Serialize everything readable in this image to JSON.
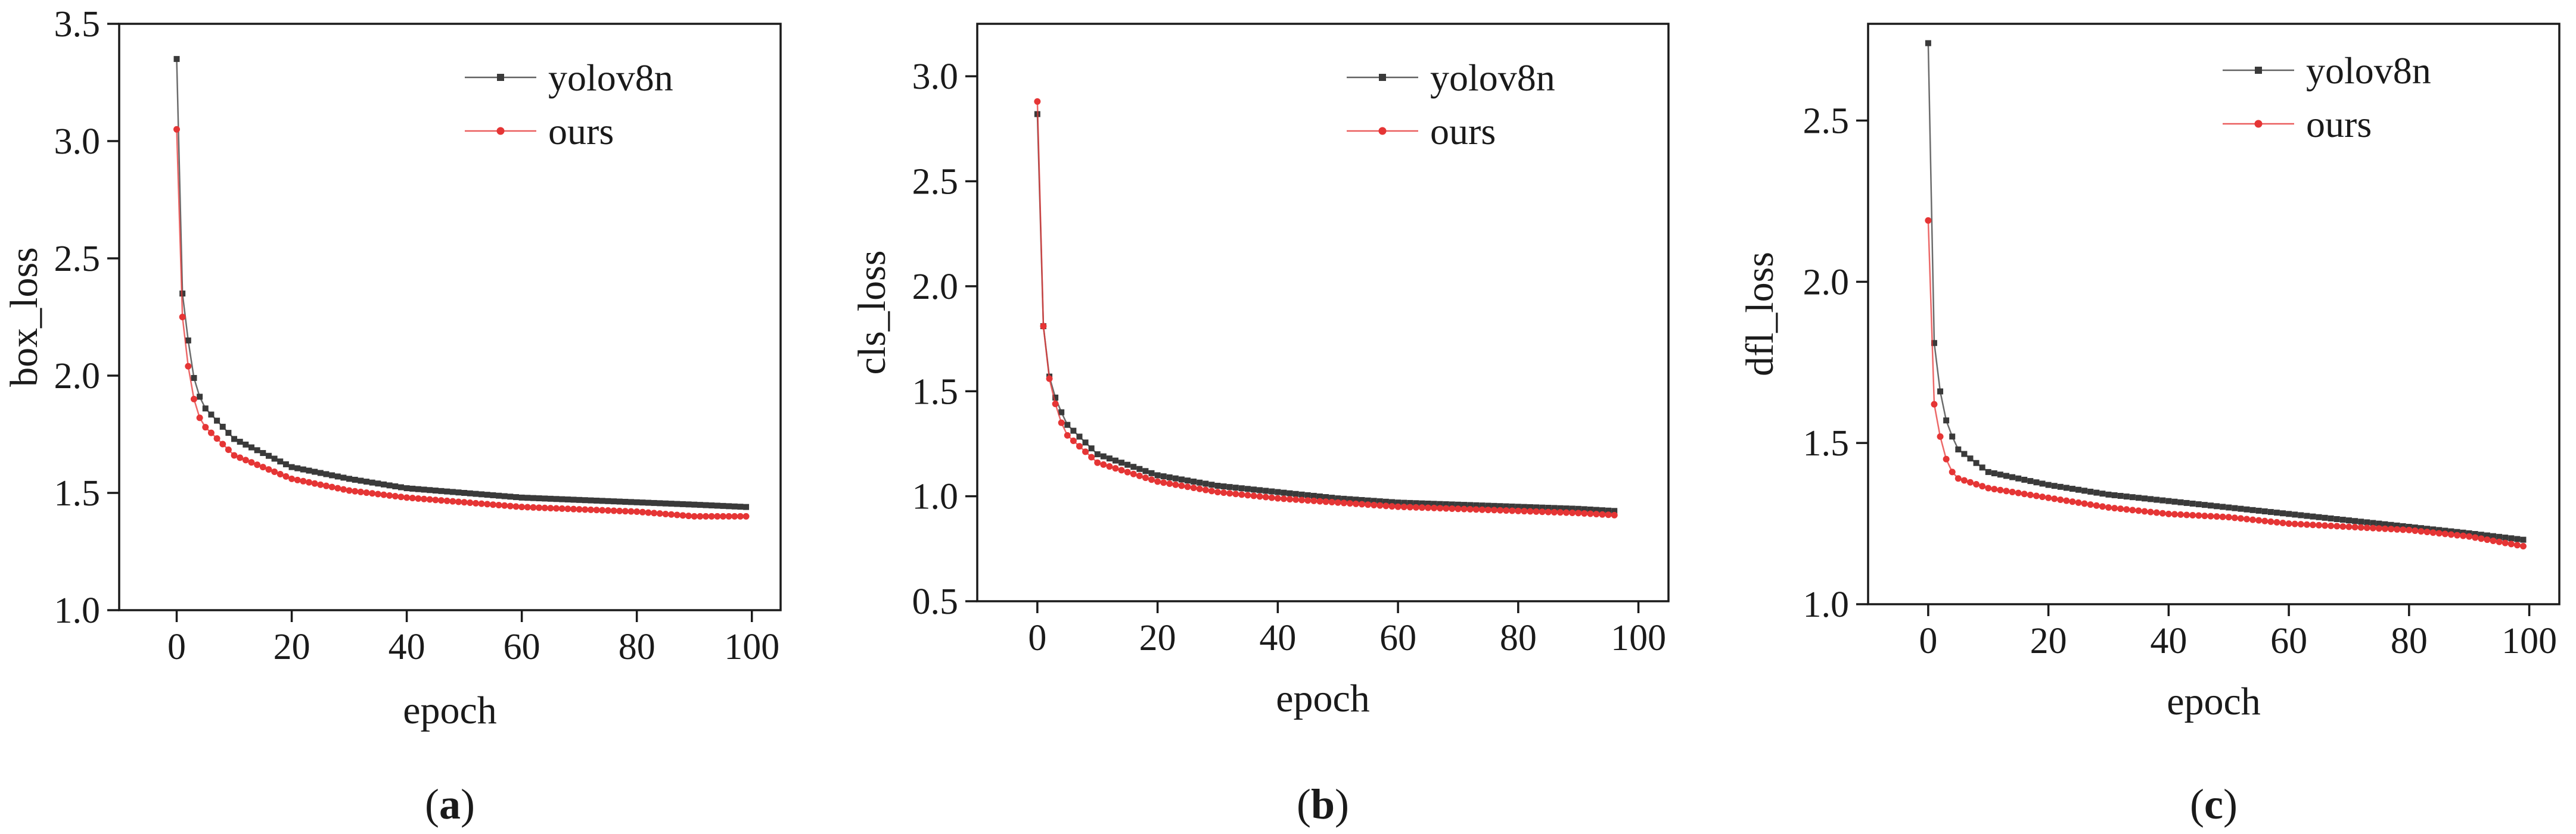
{
  "colors": {
    "yolov8n": "#3a3a3a",
    "ours": "#e53535",
    "axis": "#1a1a1a"
  },
  "chart_data": [
    {
      "type": "line",
      "panel_label": "(a)",
      "panel_letter": "a",
      "xlabel": "epoch",
      "ylabel": "box_loss",
      "xlim": [
        -10,
        105
      ],
      "ylim": [
        1.0,
        3.5
      ],
      "xticks": [
        "0",
        "20",
        "40",
        "60",
        "80",
        "100"
      ],
      "yticks": [
        "1.0",
        "1.5",
        "2.0",
        "2.5",
        "3.0",
        "3.5"
      ],
      "legend": {
        "position": "top-right",
        "entries": [
          "yolov8n",
          "ours"
        ]
      },
      "n_epochs": 100,
      "series": [
        {
          "name": "yolov8n",
          "start": [
            3.35,
            2.35,
            2.15,
            1.99,
            1.91
          ],
          "anchors": [
            [
              5,
              1.86
            ],
            [
              10,
              1.73
            ],
            [
              20,
              1.61
            ],
            [
              30,
              1.56
            ],
            [
              40,
              1.52
            ],
            [
              50,
              1.5
            ],
            [
              60,
              1.48
            ],
            [
              70,
              1.47
            ],
            [
              80,
              1.46
            ],
            [
              90,
              1.45
            ],
            [
              99,
              1.44
            ]
          ]
        },
        {
          "name": "ours",
          "start": [
            3.05,
            2.25,
            2.04,
            1.9,
            1.82
          ],
          "anchors": [
            [
              5,
              1.78
            ],
            [
              10,
              1.66
            ],
            [
              20,
              1.56
            ],
            [
              30,
              1.51
            ],
            [
              40,
              1.48
            ],
            [
              50,
              1.46
            ],
            [
              60,
              1.44
            ],
            [
              70,
              1.43
            ],
            [
              80,
              1.42
            ],
            [
              90,
              1.4
            ],
            [
              99,
              1.4
            ]
          ]
        }
      ]
    },
    {
      "type": "line",
      "panel_label": "(b)",
      "panel_letter": "b",
      "xlabel": "epoch",
      "ylabel": "cls_loss",
      "xlim": [
        -10,
        105
      ],
      "ylim": [
        0.5,
        3.25
      ],
      "xticks": [
        "0",
        "20",
        "40",
        "60",
        "80",
        "100"
      ],
      "yticks": [
        "0.5",
        "1.0",
        "1.5",
        "2.0",
        "2.5",
        "3.0"
      ],
      "legend": {
        "position": "top-right",
        "entries": [
          "yolov8n",
          "ours"
        ]
      },
      "n_epochs": 97,
      "series": [
        {
          "name": "yolov8n",
          "start": [
            2.82,
            1.81,
            1.57,
            1.47,
            1.4
          ],
          "anchors": [
            [
              5,
              1.34
            ],
            [
              10,
              1.2
            ],
            [
              20,
              1.1
            ],
            [
              30,
              1.05
            ],
            [
              40,
              1.02
            ],
            [
              50,
              0.99
            ],
            [
              60,
              0.97
            ],
            [
              70,
              0.96
            ],
            [
              80,
              0.95
            ],
            [
              90,
              0.94
            ],
            [
              96,
              0.93
            ]
          ]
        },
        {
          "name": "ours",
          "start": [
            2.88,
            1.81,
            1.56,
            1.44,
            1.35
          ],
          "anchors": [
            [
              5,
              1.29
            ],
            [
              10,
              1.16
            ],
            [
              20,
              1.07
            ],
            [
              30,
              1.02
            ],
            [
              40,
              0.99
            ],
            [
              50,
              0.97
            ],
            [
              60,
              0.95
            ],
            [
              70,
              0.94
            ],
            [
              80,
              0.93
            ],
            [
              90,
              0.92
            ],
            [
              96,
              0.91
            ]
          ]
        }
      ]
    },
    {
      "type": "line",
      "panel_label": "(c)",
      "panel_letter": "c",
      "xlabel": "epoch",
      "ylabel": "dfl_loss",
      "xlim": [
        -10,
        105
      ],
      "ylim": [
        1.0,
        2.8
      ],
      "xticks": [
        "0",
        "20",
        "40",
        "60",
        "80",
        "100"
      ],
      "yticks": [
        "1.0",
        "1.5",
        "2.0",
        "2.5"
      ],
      "legend": {
        "position": "top-right",
        "entries": [
          "yolov8n",
          "ours"
        ]
      },
      "n_epochs": 100,
      "series": [
        {
          "name": "yolov8n",
          "start": [
            2.74,
            1.81,
            1.66,
            1.57,
            1.52
          ],
          "anchors": [
            [
              5,
              1.48
            ],
            [
              10,
              1.41
            ],
            [
              20,
              1.37
            ],
            [
              30,
              1.34
            ],
            [
              40,
              1.32
            ],
            [
              50,
              1.3
            ],
            [
              60,
              1.28
            ],
            [
              70,
              1.26
            ],
            [
              80,
              1.24
            ],
            [
              90,
              1.22
            ],
            [
              99,
              1.2
            ]
          ]
        },
        {
          "name": "ours",
          "start": [
            2.19,
            1.62,
            1.52,
            1.45,
            1.41
          ],
          "anchors": [
            [
              5,
              1.39
            ],
            [
              10,
              1.36
            ],
            [
              20,
              1.33
            ],
            [
              30,
              1.3
            ],
            [
              40,
              1.28
            ],
            [
              50,
              1.27
            ],
            [
              60,
              1.25
            ],
            [
              70,
              1.24
            ],
            [
              80,
              1.23
            ],
            [
              90,
              1.21
            ],
            [
              99,
              1.18
            ]
          ]
        }
      ]
    }
  ]
}
